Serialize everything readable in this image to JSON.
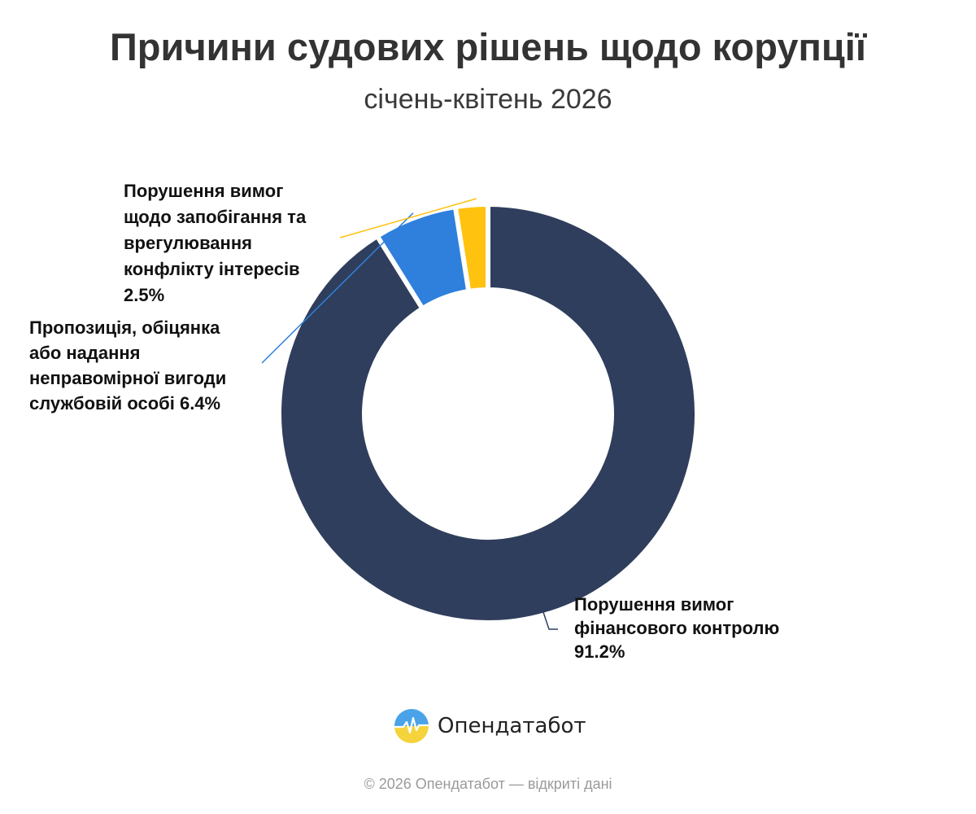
{
  "header": {
    "title": "Причини судових рішень щодо корупції",
    "subtitle": "січень-квітень 2026"
  },
  "chart_data": {
    "type": "pie",
    "donut": true,
    "title": "Причини судових рішень щодо корупції",
    "subtitle": "січень-квітень 2026",
    "slices": [
      {
        "name": "Порушення вимог фінансового контролю",
        "value": 91.2,
        "label_lines": [
          "Порушення вимог",
          "фінансового контролю",
          "91.2%"
        ],
        "color": "#2f3e5c"
      },
      {
        "name": "Пропозиція, обіцянка або надання неправомірної вигоди службовій особі",
        "value": 6.4,
        "label_lines": [
          "Пропозиція, обіцянка",
          "або надання",
          "неправомірної вигоди",
          "службовій особі 6.4%"
        ],
        "color": "#2f80dc"
      },
      {
        "name": "Порушення вимог щодо запобігання та врегулювання конфлікту інтересів",
        "value": 2.5,
        "label_lines": [
          "Порушення вимог",
          "щодо запобігання та",
          "врегулювання",
          "конфлікту інтересів",
          "2.5%"
        ],
        "color": "#ffc20e"
      }
    ]
  },
  "brand": {
    "name": "Опендатабот",
    "logo_icon": "opendatabot-logo-icon",
    "logo_colors": [
      "#4aa3e8",
      "#f5d33a"
    ]
  },
  "footer": {
    "text": "© 2026 Опендатабот — відкриті дані"
  }
}
